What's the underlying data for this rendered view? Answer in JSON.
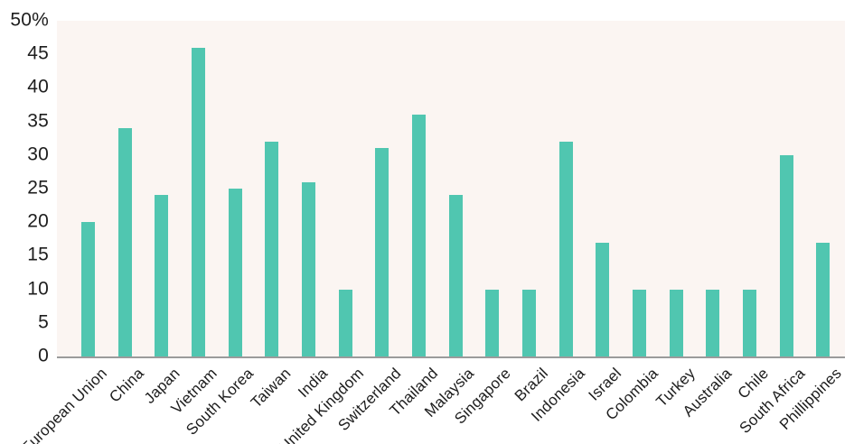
{
  "chart_data": {
    "type": "bar",
    "title": "",
    "xlabel": "",
    "ylabel": "",
    "categories": [
      "European Union",
      "China",
      "Japan",
      "Vietnam",
      "South Korea",
      "Taiwan",
      "India",
      "United Kingdom",
      "Switzerland",
      "Thailand",
      "Malaysia",
      "Singapore",
      "Brazil",
      "Indonesia",
      "Israel",
      "Colombia",
      "Turkey",
      "Australia",
      "Chile",
      "South Africa",
      "Phillippines"
    ],
    "values": [
      20,
      34,
      24,
      46,
      25,
      32,
      26,
      10,
      31,
      36,
      24,
      10,
      10,
      32,
      17,
      10,
      10,
      10,
      10,
      30,
      17
    ],
    "ylim": [
      0,
      50
    ],
    "yticks": [
      0,
      5,
      10,
      15,
      20,
      25,
      30,
      35,
      40,
      45,
      50
    ],
    "ytick_labels": [
      "0",
      "5",
      "10",
      "15",
      "20",
      "25",
      "30",
      "35",
      "40",
      "45",
      "50%"
    ],
    "grid": false,
    "legend": null,
    "x_label_rotation_deg": -45,
    "colors": {
      "bar": "#50C6B0",
      "plot_background": "#FBF5F2",
      "axis_line": "#9B9B9B",
      "text": "#1D1D1D",
      "page_background": "#FFFFFF"
    }
  }
}
